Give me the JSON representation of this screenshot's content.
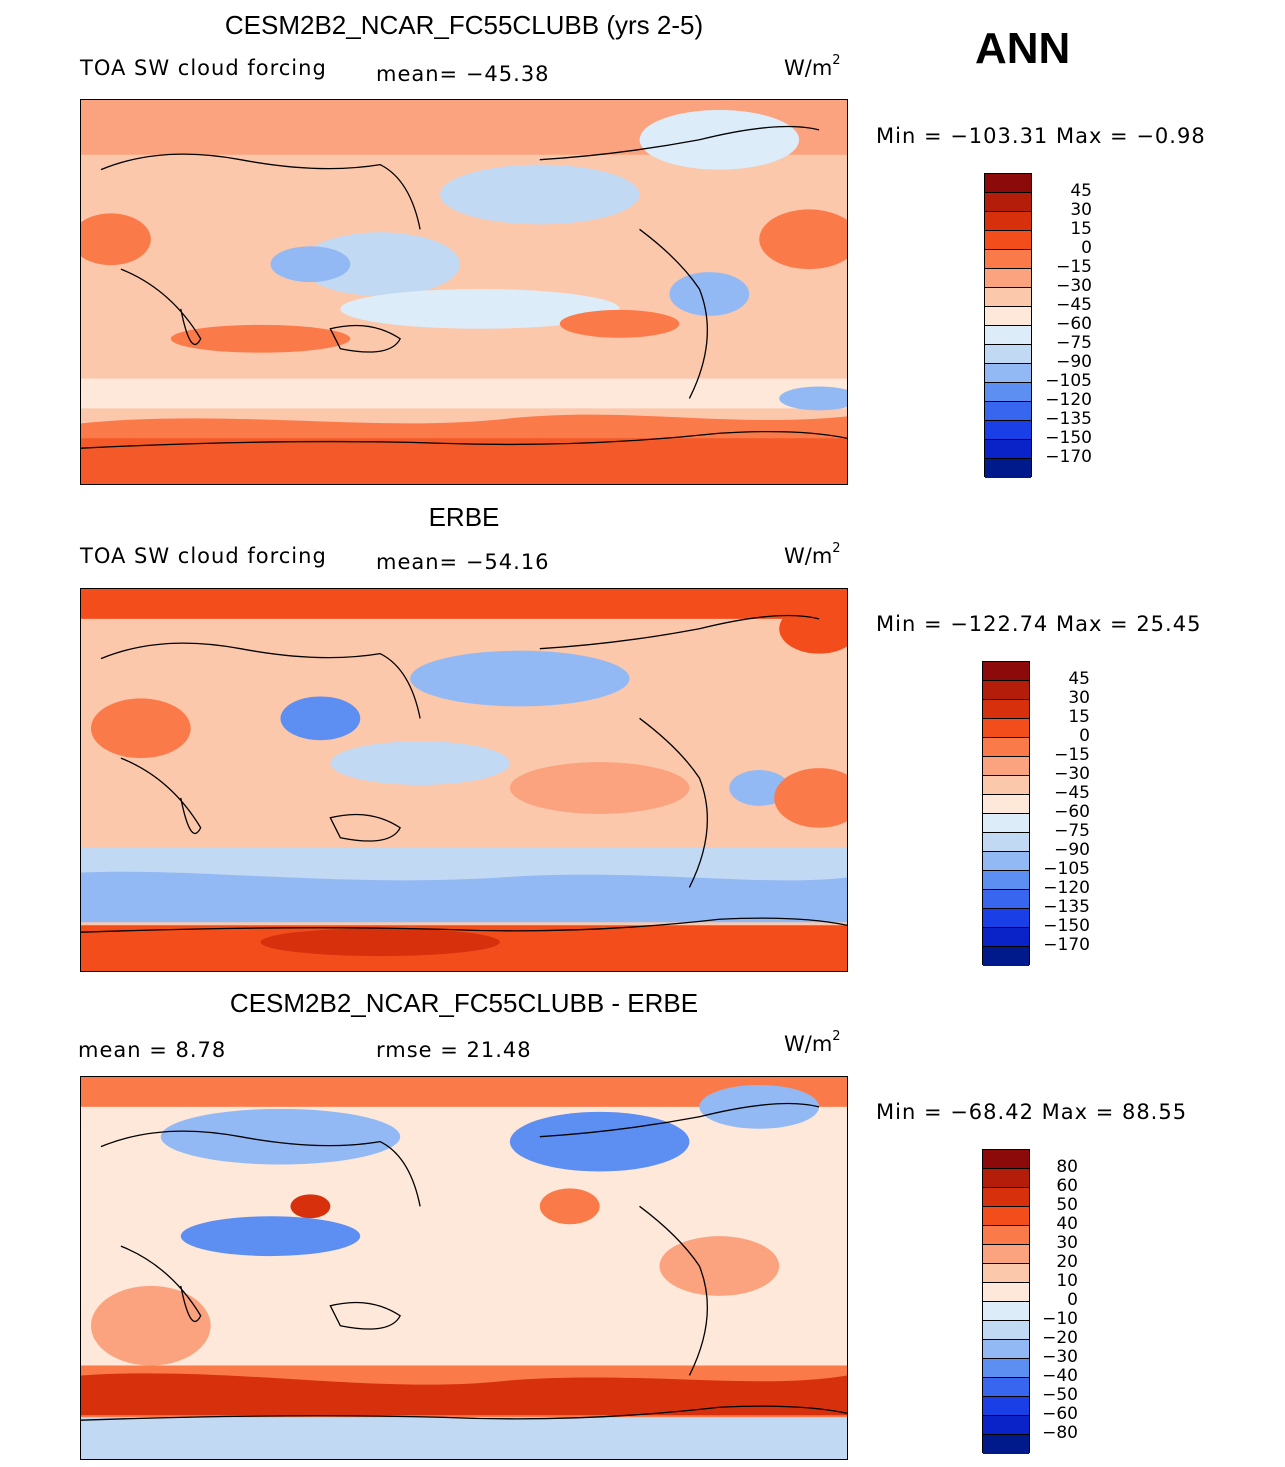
{
  "season": "ANN",
  "panels": [
    {
      "id": "model",
      "title": "CESM2B2_NCAR_FC55CLUBB (yrs 2-5)",
      "left_label": "TOA SW cloud forcing",
      "mid_label": "mean=  −45.38",
      "units_base": "W/m",
      "units_sup": "2",
      "minmax": "Min  =  −103.31  Max  =    −0.98",
      "colorbar_labels": [
        "45",
        "30",
        "15",
        "0",
        "−15",
        "−30",
        "−45",
        "−60",
        "−75",
        "−90",
        "−105",
        "−120",
        "−135",
        "−150",
        "−170"
      ],
      "colorbar_colors": [
        "#8c0a0a",
        "#b51d0b",
        "#d7300d",
        "#f34d1c",
        "#fb7a4a",
        "#fba27e",
        "#fcc8ab",
        "#fde8da",
        "#dcecf8",
        "#c2d9f4",
        "#93b9f4",
        "#5d8ef2",
        "#3866ef",
        "#1a3fe6",
        "#0a23c9",
        "#001a8c"
      ]
    },
    {
      "id": "obs",
      "title": "ERBE",
      "left_label": "TOA SW cloud forcing",
      "mid_label": "mean=  −54.16",
      "units_base": "W/m",
      "units_sup": "2",
      "minmax": "Min  =  −122.74  Max  =    25.45",
      "colorbar_labels": [
        "45",
        "30",
        "15",
        "0",
        "−15",
        "−30",
        "−45",
        "−60",
        "−75",
        "−90",
        "−105",
        "−120",
        "−135",
        "−150",
        "−170"
      ],
      "colorbar_colors": [
        "#8c0a0a",
        "#b51d0b",
        "#d7300d",
        "#f34d1c",
        "#fb7a4a",
        "#fba27e",
        "#fcc8ab",
        "#fde8da",
        "#dcecf8",
        "#c2d9f4",
        "#93b9f4",
        "#5d8ef2",
        "#3866ef",
        "#1a3fe6",
        "#0a23c9",
        "#001a8c"
      ]
    },
    {
      "id": "diff",
      "title": "CESM2B2_NCAR_FC55CLUBB - ERBE",
      "left_label": "mean  =      8.78",
      "mid_label": "rmse  =    21.48",
      "units_base": "W/m",
      "units_sup": "2",
      "minmax": "Min  =  −68.42  Max  =    88.55",
      "colorbar_labels": [
        "80",
        "60",
        "50",
        "40",
        "30",
        "20",
        "10",
        "0",
        "−10",
        "−20",
        "−30",
        "−40",
        "−50",
        "−60",
        "−80"
      ],
      "colorbar_colors": [
        "#8c0a0a",
        "#b51d0b",
        "#d7300d",
        "#f34d1c",
        "#fb7a4a",
        "#fba27e",
        "#fcc8ab",
        "#fde8da",
        "#dcecf8",
        "#c2d9f4",
        "#93b9f4",
        "#5d8ef2",
        "#3866ef",
        "#1a3fe6",
        "#0a23c9",
        "#001a8c"
      ]
    }
  ]
}
